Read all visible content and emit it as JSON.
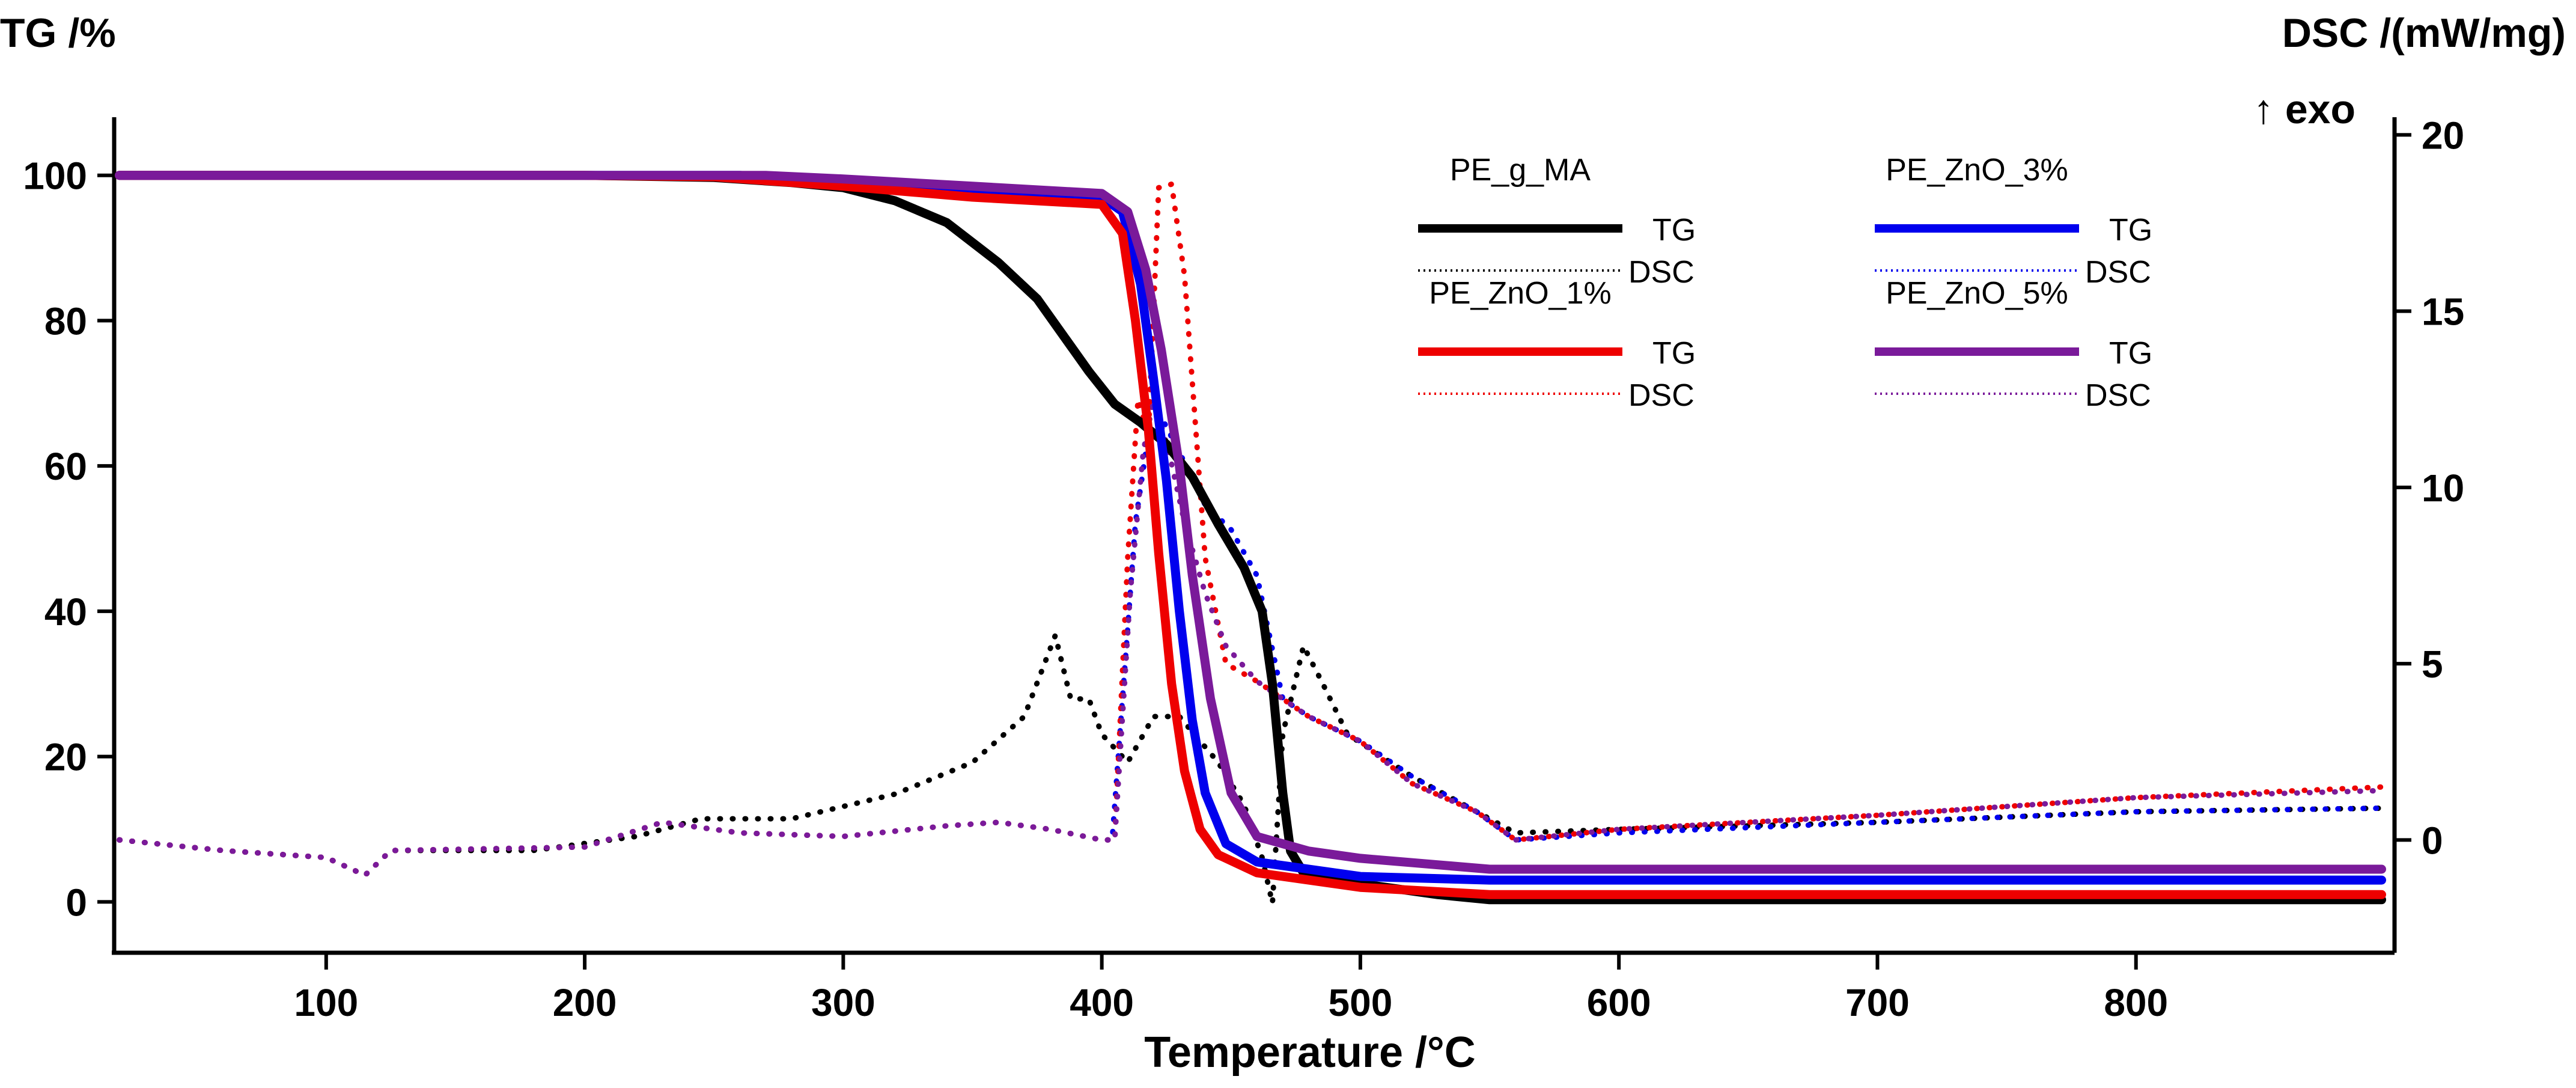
{
  "chart_data": {
    "type": "line",
    "xlabel": "Temperature /°C",
    "ylabel_left": "TG /%",
    "ylabel_right": "DSC /(mW/mg)",
    "exo_note": "↑ exo",
    "xlim": [
      18,
      900
    ],
    "ylim_left": [
      -7,
      108
    ],
    "ylim_right": [
      -3.2,
      20.5
    ],
    "x_ticks": [
      100,
      200,
      300,
      400,
      500,
      600,
      700,
      800
    ],
    "y_left_ticks": [
      0,
      20,
      40,
      60,
      80,
      100
    ],
    "y_right_ticks": [
      0,
      5,
      10,
      15,
      20
    ],
    "legend": {
      "tg_label": "TG",
      "dsc_label": "DSC",
      "groups": [
        {
          "name": "PE_g_MA",
          "color": "#000000"
        },
        {
          "name": "PE_ZnO_3%",
          "color": "#0000ee"
        },
        {
          "name": "PE_ZnO_1%",
          "color": "#ee0000"
        },
        {
          "name": "PE_ZnO_5%",
          "color": "#7a1a9a"
        }
      ]
    },
    "series": [
      {
        "name": "PE_g_MA",
        "kind": "TG",
        "axis": "left",
        "color": "#000000",
        "points": [
          [
            20,
            100
          ],
          [
            100,
            100
          ],
          [
            200,
            100
          ],
          [
            250,
            99.7
          ],
          [
            280,
            99
          ],
          [
            300,
            98.3
          ],
          [
            320,
            96.5
          ],
          [
            340,
            93.5
          ],
          [
            360,
            88
          ],
          [
            375,
            83
          ],
          [
            385,
            78
          ],
          [
            395,
            73
          ],
          [
            405,
            68.5
          ],
          [
            415,
            66
          ],
          [
            425,
            63
          ],
          [
            435,
            58.5
          ],
          [
            445,
            52
          ],
          [
            455,
            46
          ],
          [
            462,
            40
          ],
          [
            466,
            30
          ],
          [
            470,
            15
          ],
          [
            473,
            7
          ],
          [
            478,
            4
          ],
          [
            500,
            2.5
          ],
          [
            530,
            1
          ],
          [
            550,
            0.3
          ],
          [
            600,
            0.3
          ],
          [
            700,
            0.3
          ],
          [
            800,
            0.3
          ],
          [
            895,
            0.3
          ]
        ]
      },
      {
        "name": "PE_ZnO_3%",
        "kind": "TG",
        "axis": "left",
        "color": "#0000ee",
        "points": [
          [
            20,
            100
          ],
          [
            200,
            100
          ],
          [
            260,
            100
          ],
          [
            300,
            99
          ],
          [
            350,
            98
          ],
          [
            400,
            97
          ],
          [
            408,
            95
          ],
          [
            415,
            85
          ],
          [
            420,
            72
          ],
          [
            425,
            58
          ],
          [
            430,
            40
          ],
          [
            435,
            25
          ],
          [
            440,
            15
          ],
          [
            448,
            8
          ],
          [
            460,
            5.5
          ],
          [
            500,
            3.5
          ],
          [
            550,
            3
          ],
          [
            600,
            3
          ],
          [
            700,
            3
          ],
          [
            800,
            3
          ],
          [
            895,
            3
          ]
        ]
      },
      {
        "name": "PE_ZnO_1%",
        "kind": "TG",
        "axis": "left",
        "color": "#ee0000",
        "points": [
          [
            20,
            100
          ],
          [
            200,
            100
          ],
          [
            250,
            99.8
          ],
          [
            300,
            98.5
          ],
          [
            350,
            97
          ],
          [
            400,
            96
          ],
          [
            408,
            92
          ],
          [
            413,
            80
          ],
          [
            418,
            65
          ],
          [
            422,
            48
          ],
          [
            427,
            30
          ],
          [
            432,
            18
          ],
          [
            438,
            10
          ],
          [
            445,
            6.5
          ],
          [
            460,
            4
          ],
          [
            500,
            2
          ],
          [
            550,
            1
          ],
          [
            600,
            1
          ],
          [
            700,
            1
          ],
          [
            800,
            1
          ],
          [
            895,
            1
          ]
        ]
      },
      {
        "name": "PE_ZnO_5%",
        "kind": "TG",
        "axis": "left",
        "color": "#7a1a9a",
        "points": [
          [
            20,
            100
          ],
          [
            200,
            100
          ],
          [
            270,
            100
          ],
          [
            300,
            99.5
          ],
          [
            350,
            98.5
          ],
          [
            400,
            97.5
          ],
          [
            410,
            95
          ],
          [
            417,
            87
          ],
          [
            423,
            76
          ],
          [
            430,
            60
          ],
          [
            435,
            45
          ],
          [
            442,
            28
          ],
          [
            450,
            15
          ],
          [
            460,
            9
          ],
          [
            480,
            7
          ],
          [
            500,
            6
          ],
          [
            550,
            4.5
          ],
          [
            600,
            4.5
          ],
          [
            700,
            4.5
          ],
          [
            800,
            4.5
          ],
          [
            895,
            4.5
          ]
        ]
      },
      {
        "name": "PE_g_MA",
        "kind": "DSC",
        "axis": "right",
        "color": "#000000",
        "points": [
          [
            20,
            0
          ],
          [
            60,
            -0.3
          ],
          [
            100,
            -0.5
          ],
          [
            115,
            -1
          ],
          [
            125,
            -0.3
          ],
          [
            180,
            -0.3
          ],
          [
            220,
            0.1
          ],
          [
            245,
            0.6
          ],
          [
            280,
            0.6
          ],
          [
            320,
            1.3
          ],
          [
            350,
            2.2
          ],
          [
            370,
            3.5
          ],
          [
            382,
            5.8
          ],
          [
            388,
            4
          ],
          [
            395,
            4
          ],
          [
            400,
            3
          ],
          [
            410,
            2.2
          ],
          [
            420,
            3.5
          ],
          [
            430,
            3.5
          ],
          [
            445,
            2.2
          ],
          [
            455,
            1
          ],
          [
            462,
            -0.5
          ],
          [
            466,
            -1.8
          ],
          [
            470,
            3
          ],
          [
            478,
            5.5
          ],
          [
            485,
            4.5
          ],
          [
            495,
            3
          ],
          [
            520,
            1.8
          ],
          [
            545,
            0.8
          ],
          [
            560,
            0.2
          ],
          [
            600,
            0.3
          ],
          [
            700,
            0.5
          ],
          [
            800,
            0.8
          ],
          [
            895,
            0.9
          ]
        ]
      },
      {
        "name": "PE_ZnO_3%",
        "kind": "DSC",
        "axis": "right",
        "color": "#0000ee",
        "points": [
          [
            20,
            0
          ],
          [
            60,
            -0.3
          ],
          [
            100,
            -0.5
          ],
          [
            115,
            -1
          ],
          [
            125,
            -0.3
          ],
          [
            200,
            -0.2
          ],
          [
            230,
            0.5
          ],
          [
            260,
            0.2
          ],
          [
            300,
            0.1
          ],
          [
            340,
            0.4
          ],
          [
            360,
            0.5
          ],
          [
            380,
            0.3
          ],
          [
            400,
            0
          ],
          [
            404,
            0
          ],
          [
            408,
            4
          ],
          [
            413,
            9
          ],
          [
            418,
            11.5
          ],
          [
            423,
            12
          ],
          [
            430,
            11
          ],
          [
            440,
            9.5
          ],
          [
            450,
            8.8
          ],
          [
            460,
            7.5
          ],
          [
            470,
            4
          ],
          [
            480,
            3.5
          ],
          [
            500,
            2.8
          ],
          [
            520,
            1.8
          ],
          [
            545,
            0.8
          ],
          [
            560,
            0
          ],
          [
            600,
            0.2
          ],
          [
            700,
            0.5
          ],
          [
            800,
            0.8
          ],
          [
            895,
            0.9
          ]
        ]
      },
      {
        "name": "PE_ZnO_1%",
        "kind": "DSC",
        "axis": "right",
        "color": "#ee0000",
        "points": [
          [
            20,
            0
          ],
          [
            60,
            -0.3
          ],
          [
            100,
            -0.5
          ],
          [
            115,
            -1
          ],
          [
            125,
            -0.3
          ],
          [
            200,
            -0.2
          ],
          [
            230,
            0.5
          ],
          [
            260,
            0.2
          ],
          [
            300,
            0.1
          ],
          [
            340,
            0.4
          ],
          [
            360,
            0.5
          ],
          [
            380,
            0.3
          ],
          [
            400,
            0
          ],
          [
            405,
            0
          ],
          [
            410,
            8
          ],
          [
            414,
            12.5
          ],
          [
            418,
            11.5
          ],
          [
            422,
            18.5
          ],
          [
            427,
            18.6
          ],
          [
            432,
            16
          ],
          [
            440,
            8
          ],
          [
            448,
            5
          ],
          [
            460,
            4.5
          ],
          [
            470,
            4
          ],
          [
            480,
            3.5
          ],
          [
            500,
            2.8
          ],
          [
            520,
            1.6
          ],
          [
            545,
            0.8
          ],
          [
            560,
            0
          ],
          [
            600,
            0.3
          ],
          [
            700,
            0.7
          ],
          [
            800,
            1.2
          ],
          [
            895,
            1.5
          ]
        ]
      },
      {
        "name": "PE_ZnO_5%",
        "kind": "DSC",
        "axis": "right",
        "color": "#7a1a9a",
        "points": [
          [
            20,
            0
          ],
          [
            60,
            -0.3
          ],
          [
            100,
            -0.5
          ],
          [
            115,
            -1
          ],
          [
            125,
            -0.3
          ],
          [
            200,
            -0.2
          ],
          [
            230,
            0.5
          ],
          [
            260,
            0.2
          ],
          [
            300,
            0.1
          ],
          [
            340,
            0.4
          ],
          [
            360,
            0.5
          ],
          [
            380,
            0.3
          ],
          [
            400,
            0
          ],
          [
            405,
            0
          ],
          [
            411,
            7
          ],
          [
            416,
            11
          ],
          [
            420,
            12.5
          ],
          [
            426,
            11
          ],
          [
            432,
            9
          ],
          [
            440,
            7
          ],
          [
            448,
            5.5
          ],
          [
            460,
            4.5
          ],
          [
            470,
            4
          ],
          [
            480,
            3.5
          ],
          [
            500,
            2.8
          ],
          [
            520,
            1.6
          ],
          [
            545,
            0.8
          ],
          [
            560,
            0
          ],
          [
            600,
            0.3
          ],
          [
            700,
            0.7
          ],
          [
            800,
            1.2
          ],
          [
            895,
            1.4
          ]
        ]
      }
    ]
  }
}
